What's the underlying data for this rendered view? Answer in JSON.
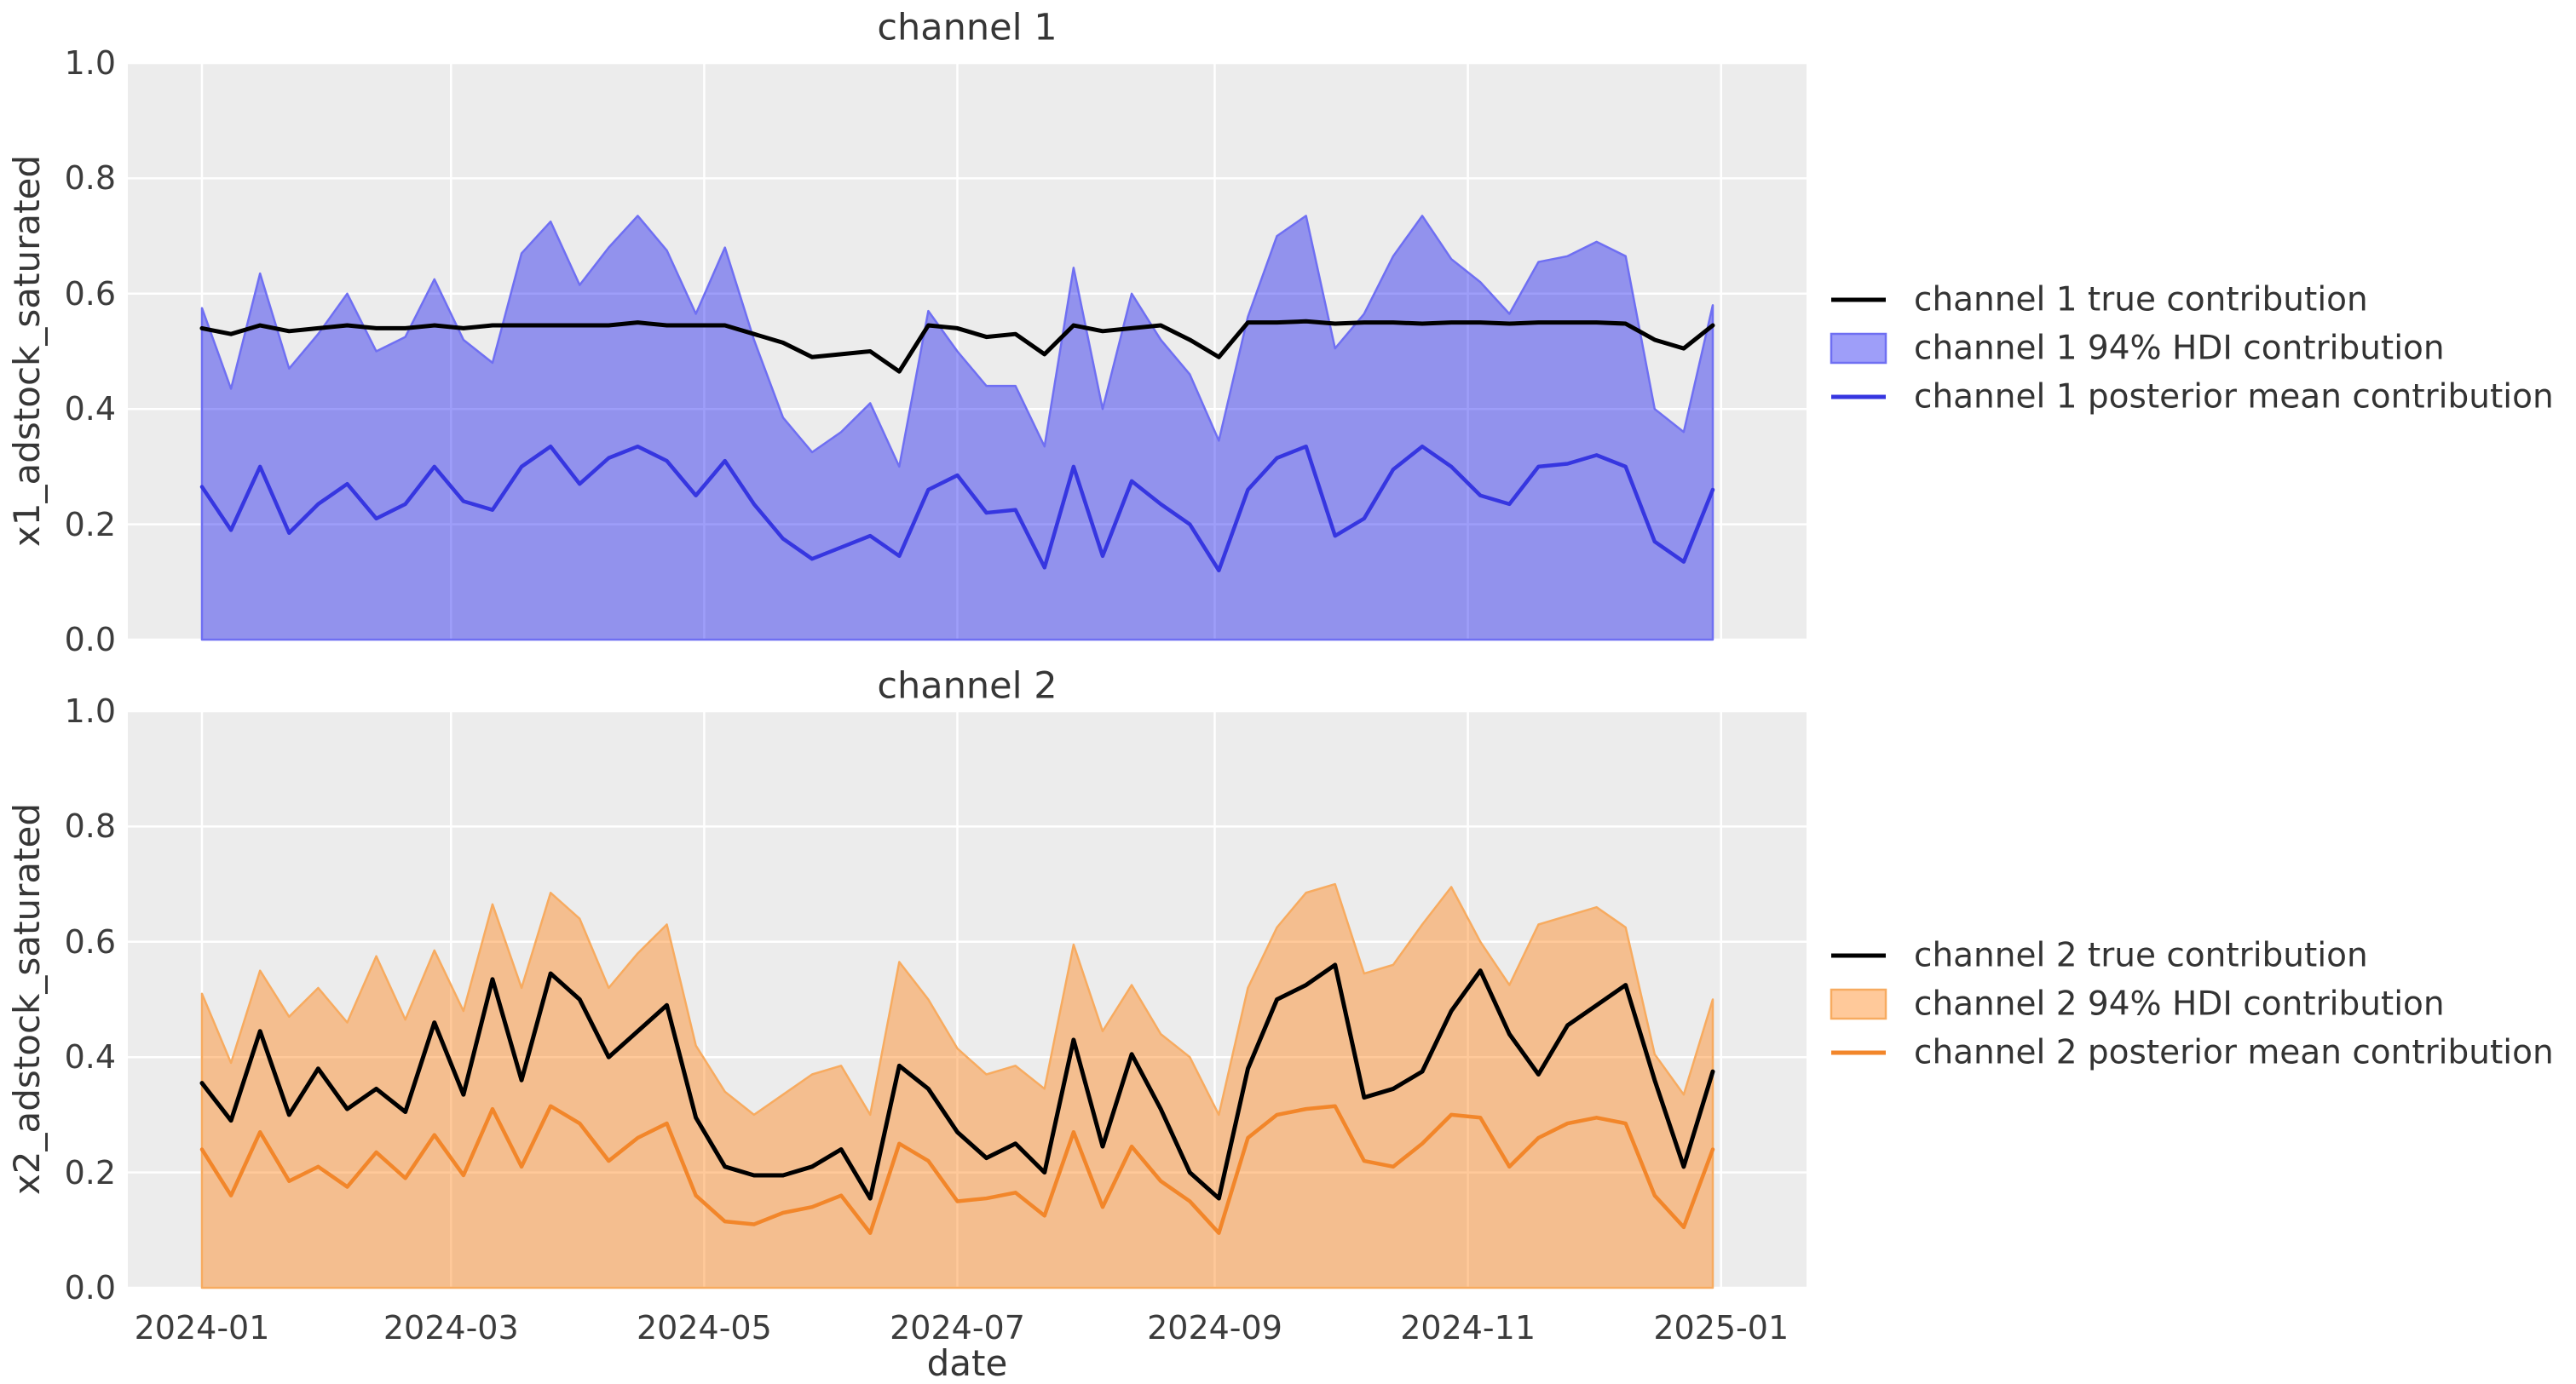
{
  "figure": {
    "background": "#ffffff",
    "panel_background": "#ececec",
    "grid_color": "#ffffff",
    "text_color": "#363636",
    "tick_text_color": "#3c3c3c"
  },
  "chart_data": [
    {
      "type": "area",
      "title": "channel 1",
      "axes": {
        "ylabel": "x1_adstock_saturated",
        "xlabel": "",
        "ylim": [
          0.0,
          1.0
        ],
        "ytick_labels": [
          "0.0",
          "0.2",
          "0.4",
          "0.6",
          "0.8",
          "1.0"
        ],
        "ytick_values": [
          0.0,
          0.2,
          0.4,
          0.6,
          0.8,
          1.0
        ],
        "xtick_labels": [
          "2024-01",
          "2024-03",
          "2024-05",
          "2024-07",
          "2024-09",
          "2024-11",
          "2025-01"
        ],
        "xtick_days": [
          0,
          60,
          121,
          182,
          244,
          305,
          366
        ],
        "grid": true
      },
      "x": {
        "start_date": "2024-01-01",
        "freq": "weekly",
        "n_points": 53
      },
      "legend": [
        {
          "label": "channel 1 true contribution",
          "kind": "line",
          "color": "#000000"
        },
        {
          "label": "channel 1 94% HDI contribution",
          "kind": "patch",
          "fill": "#0000ee",
          "fill_opacity": 0.38,
          "edge": "#6f6ff2"
        },
        {
          "label": "channel 1 posterior mean contribution",
          "kind": "line",
          "color": "#3636e0"
        }
      ],
      "series": [
        {
          "name": "channel 1 true contribution",
          "kind": "line",
          "color": "#000000",
          "width": 5,
          "values": [
            0.54,
            0.53,
            0.545,
            0.535,
            0.54,
            0.545,
            0.54,
            0.54,
            0.545,
            0.54,
            0.545,
            0.545,
            0.545,
            0.545,
            0.545,
            0.55,
            0.545,
            0.545,
            0.545,
            0.53,
            0.515,
            0.49,
            0.495,
            0.5,
            0.465,
            0.545,
            0.54,
            0.525,
            0.53,
            0.495,
            0.545,
            0.535,
            0.54,
            0.545,
            0.52,
            0.49,
            0.55,
            0.55,
            0.552,
            0.548,
            0.55,
            0.55,
            0.548,
            0.55,
            0.55,
            0.548,
            0.55,
            0.55,
            0.55,
            0.548,
            0.52,
            0.505,
            0.545
          ]
        },
        {
          "name": "channel 1 94% HDI contribution",
          "kind": "band",
          "fill_color": "#0000ee",
          "fill_opacity": 0.38,
          "edge_color": "#6f6ff2",
          "lower": 0.0,
          "upper": [
            0.575,
            0.435,
            0.635,
            0.47,
            0.53,
            0.6,
            0.5,
            0.525,
            0.625,
            0.52,
            0.48,
            0.67,
            0.725,
            0.615,
            0.68,
            0.735,
            0.675,
            0.565,
            0.68,
            0.52,
            0.385,
            0.325,
            0.36,
            0.41,
            0.3,
            0.57,
            0.5,
            0.44,
            0.44,
            0.335,
            0.645,
            0.4,
            0.6,
            0.52,
            0.46,
            0.345,
            0.56,
            0.7,
            0.735,
            0.505,
            0.565,
            0.665,
            0.735,
            0.66,
            0.62,
            0.565,
            0.655,
            0.665,
            0.69,
            0.665,
            0.4,
            0.36,
            0.58
          ]
        },
        {
          "name": "channel 1 posterior mean contribution",
          "kind": "line",
          "color": "#3636e0",
          "width": 4.5,
          "values": [
            0.265,
            0.19,
            0.3,
            0.185,
            0.235,
            0.27,
            0.21,
            0.235,
            0.3,
            0.24,
            0.225,
            0.3,
            0.335,
            0.27,
            0.315,
            0.335,
            0.31,
            0.25,
            0.31,
            0.235,
            0.175,
            0.14,
            0.16,
            0.18,
            0.145,
            0.26,
            0.285,
            0.22,
            0.225,
            0.125,
            0.3,
            0.145,
            0.275,
            0.235,
            0.2,
            0.12,
            0.26,
            0.315,
            0.335,
            0.18,
            0.21,
            0.295,
            0.335,
            0.3,
            0.25,
            0.235,
            0.3,
            0.305,
            0.32,
            0.3,
            0.17,
            0.135,
            0.26
          ]
        }
      ]
    },
    {
      "type": "area",
      "title": "channel 2",
      "axes": {
        "ylabel": "x2_adstock_saturated",
        "xlabel": "date",
        "ylim": [
          0.0,
          1.0
        ],
        "ytick_labels": [
          "0.0",
          "0.2",
          "0.4",
          "0.6",
          "0.8",
          "1.0"
        ],
        "ytick_values": [
          0.0,
          0.2,
          0.4,
          0.6,
          0.8,
          1.0
        ],
        "xtick_labels": [
          "2024-01",
          "2024-03",
          "2024-05",
          "2024-07",
          "2024-09",
          "2024-11",
          "2025-01"
        ],
        "xtick_days": [
          0,
          60,
          121,
          182,
          244,
          305,
          366
        ],
        "grid": true
      },
      "x": {
        "start_date": "2024-01-01",
        "freq": "weekly",
        "n_points": 53
      },
      "legend": [
        {
          "label": "channel 2 true contribution",
          "kind": "line",
          "color": "#000000"
        },
        {
          "label": "channel 2 94% HDI contribution",
          "kind": "patch",
          "fill": "#ff7f0e",
          "fill_opacity": 0.42,
          "edge": "#f7ab60"
        },
        {
          "label": "channel 2 posterior mean contribution",
          "kind": "line",
          "color": "#f2862a"
        }
      ],
      "series": [
        {
          "name": "channel 2 true contribution",
          "kind": "line",
          "color": "#000000",
          "width": 5,
          "values": [
            0.355,
            0.29,
            0.445,
            0.3,
            0.38,
            0.31,
            0.345,
            0.305,
            0.46,
            0.335,
            0.535,
            0.36,
            0.545,
            0.5,
            0.4,
            0.445,
            0.49,
            0.295,
            0.21,
            0.195,
            0.195,
            0.21,
            0.24,
            0.155,
            0.385,
            0.345,
            0.27,
            0.225,
            0.25,
            0.2,
            0.43,
            0.245,
            0.405,
            0.31,
            0.2,
            0.155,
            0.38,
            0.5,
            0.525,
            0.56,
            0.33,
            0.345,
            0.375,
            0.48,
            0.55,
            0.44,
            0.37,
            0.455,
            0.49,
            0.525,
            0.36,
            0.21,
            0.375
          ]
        },
        {
          "name": "channel 2 94% HDI contribution",
          "kind": "band",
          "fill_color": "#ff7f0e",
          "fill_opacity": 0.42,
          "edge_color": "#f7ab60",
          "lower": 0.0,
          "upper": [
            0.51,
            0.39,
            0.55,
            0.47,
            0.52,
            0.46,
            0.575,
            0.465,
            0.585,
            0.48,
            0.665,
            0.52,
            0.685,
            0.64,
            0.52,
            0.58,
            0.63,
            0.42,
            0.34,
            0.3,
            0.335,
            0.37,
            0.385,
            0.3,
            0.565,
            0.5,
            0.415,
            0.37,
            0.385,
            0.345,
            0.595,
            0.445,
            0.525,
            0.44,
            0.4,
            0.3,
            0.52,
            0.625,
            0.685,
            0.7,
            0.545,
            0.56,
            0.63,
            0.695,
            0.6,
            0.525,
            0.63,
            0.645,
            0.66,
            0.625,
            0.405,
            0.335,
            0.5
          ]
        },
        {
          "name": "channel 2 posterior mean contribution",
          "kind": "line",
          "color": "#f2862a",
          "width": 4.5,
          "values": [
            0.24,
            0.16,
            0.27,
            0.185,
            0.21,
            0.175,
            0.235,
            0.19,
            0.265,
            0.195,
            0.31,
            0.21,
            0.315,
            0.285,
            0.22,
            0.26,
            0.285,
            0.16,
            0.115,
            0.11,
            0.13,
            0.14,
            0.16,
            0.095,
            0.25,
            0.22,
            0.15,
            0.155,
            0.165,
            0.125,
            0.27,
            0.14,
            0.245,
            0.185,
            0.15,
            0.095,
            0.26,
            0.3,
            0.31,
            0.315,
            0.22,
            0.21,
            0.25,
            0.3,
            0.295,
            0.21,
            0.26,
            0.285,
            0.295,
            0.285,
            0.16,
            0.105,
            0.24
          ]
        }
      ]
    }
  ]
}
